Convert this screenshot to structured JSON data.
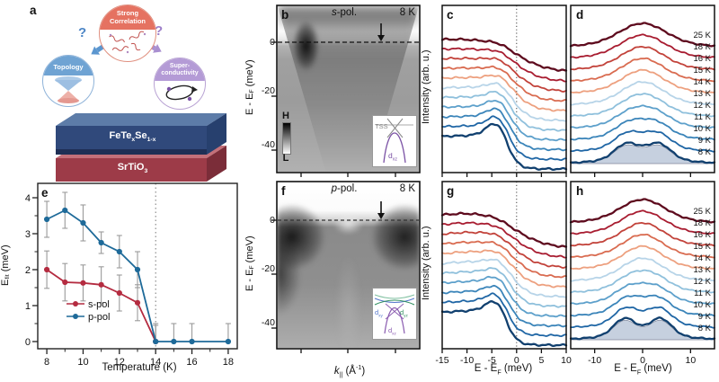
{
  "panel_a": {
    "label": "a",
    "correlation_line1": "Strong",
    "correlation_line2": "Correlation",
    "topology_label": "Topology",
    "superconductivity_line1": "Super-",
    "superconductivity_line2": "conductivity",
    "question_left": "?",
    "question_right": "?",
    "film": {
      "p1": "FeTe",
      "sub1": "x",
      "p2": "Se",
      "sub2": "1-x"
    },
    "substrate": {
      "p1": "SrTiO",
      "sub": "3"
    }
  },
  "axis": {
    "e_ef_1": "E - E",
    "e_ef_sub": "F",
    "e_ef_2": " (meV)",
    "intensity": "Intensity (arb. u.)"
  },
  "panel_b": {
    "label": "b",
    "pol_italic": "s",
    "pol_rest": "-pol.",
    "temperature": "8 K",
    "yticks": [
      "0",
      "-20",
      "-40"
    ],
    "colorbar_high": "H",
    "colorbar_low": "L",
    "inset": {
      "tss": "TSS",
      "d": "d",
      "dsub": "xz"
    }
  },
  "panel_f": {
    "label": "f",
    "pol_italic": "p",
    "pol_rest": "-pol.",
    "temperature": "8 K",
    "yticks": [
      "0",
      "-20",
      "-40"
    ],
    "xlabel": {
      "k": "k",
      "ksub": "||",
      "p2": " (Å",
      "sup": "-1",
      "p3": ")"
    },
    "inset": {
      "d1": "d",
      "d1sub": "xy",
      "d2": "d",
      "d2sub": "yz",
      "d3": "d",
      "d3sub": "xz"
    }
  },
  "panel_c": {
    "label": "c"
  },
  "panel_g": {
    "label": "g"
  },
  "panel_d": {
    "label": "d"
  },
  "panel_h": {
    "label": "h"
  },
  "panel_e": {
    "label": "e",
    "ylabel_main": "E",
    "ylabel_sub": "fit",
    "ylabel_rest": " (meV)",
    "xlabel": "Temperature (K)"
  },
  "chart_data": {
    "panel_e": {
      "type": "line",
      "xlabel": "Temperature (K)",
      "ylabel": "Efit (meV)",
      "xlim": [
        7.5,
        18.5
      ],
      "ylim": [
        0,
        4.6
      ],
      "xticks": [
        8,
        10,
        12,
        14,
        16,
        18
      ],
      "xticks_minor": [
        9,
        11,
        13,
        15,
        17
      ],
      "yticks": [
        0,
        1,
        2,
        3,
        4
      ],
      "yticks_minor": [
        0.5,
        1.5,
        2.5,
        3.5
      ],
      "dashed_line_x": 14,
      "series": [
        {
          "name": "s-pol",
          "color": "#b42b40",
          "x": [
            8,
            9,
            10,
            11,
            12,
            13,
            14
          ],
          "y": [
            2.0,
            1.65,
            1.63,
            1.58,
            1.35,
            1.08,
            0.0
          ],
          "yerr": [
            0.52,
            0.52,
            0.5,
            0.5,
            0.5,
            0.5,
            0.45
          ]
        },
        {
          "name": "p-pol",
          "color": "#1e6a99",
          "x": [
            8,
            9,
            10,
            11,
            12,
            13,
            14,
            15,
            16,
            18
          ],
          "y": [
            3.4,
            3.65,
            3.3,
            2.75,
            2.5,
            2.0,
            0.0,
            0.0,
            0.0,
            0.0
          ],
          "yerr": [
            0.5,
            0.5,
            0.5,
            0.3,
            0.45,
            0.5,
            0.5,
            0.5,
            0.5,
            0.5
          ]
        }
      ]
    },
    "panel_c": {
      "type": "line",
      "desc": "EDCs at kF, s-pol",
      "model": "edge",
      "xlim": [
        -15,
        10
      ],
      "xlabel": "E - EF (meV)",
      "xticks": [
        -15,
        -10,
        -5,
        0,
        5,
        10
      ],
      "xtick_labels": [],
      "dotted_line_x": 0,
      "curves": [
        {
          "label": "25 K",
          "color": "#5e0b1e",
          "mu": 0.3,
          "w": 3.0,
          "peak_pos": -3.0,
          "peak_amp": 0.1,
          "hump_amp": 0.03
        },
        {
          "label": "18 K",
          "color": "#a81c30",
          "mu": 0.2,
          "w": 2.6,
          "peak_pos": -3.0,
          "peak_amp": 0.13,
          "hump_amp": 0.03
        },
        {
          "label": "16 K",
          "color": "#c2423a",
          "mu": 0.1,
          "w": 2.3,
          "peak_pos": -3.1,
          "peak_amp": 0.16,
          "hump_amp": 0.03
        },
        {
          "label": "15 K",
          "color": "#d96b50",
          "mu": 0.0,
          "w": 2.1,
          "peak_pos": -3.1,
          "peak_amp": 0.18,
          "hump_amp": 0.03
        },
        {
          "label": "14 K",
          "color": "#eda07f",
          "mu": 0.0,
          "w": 1.9,
          "peak_pos": -3.2,
          "peak_amp": 0.21,
          "hump_amp": 0.03
        },
        {
          "label": "13 K",
          "color": "#b7d4e8",
          "mu": -0.4,
          "w": 1.7,
          "peak_pos": -3.2,
          "peak_amp": 0.27,
          "hump_amp": 0.03
        },
        {
          "label": "12 K",
          "color": "#8fc0dc",
          "mu": -0.6,
          "w": 1.6,
          "peak_pos": -3.3,
          "peak_amp": 0.31,
          "hump_amp": 0.03
        },
        {
          "label": "11 K",
          "color": "#5da0cb",
          "mu": -0.8,
          "w": 1.5,
          "peak_pos": -3.3,
          "peak_amp": 0.35,
          "hump_amp": 0.03
        },
        {
          "label": "10 K",
          "color": "#3a84b9",
          "mu": -1.0,
          "w": 1.4,
          "peak_pos": -3.4,
          "peak_amp": 0.39,
          "hump_amp": 0.03
        },
        {
          "label": "9 K",
          "color": "#1f66a5",
          "mu": -1.3,
          "w": 1.3,
          "peak_pos": -3.4,
          "peak_amp": 0.45,
          "hump_amp": 0.03
        },
        {
          "label": "8 K",
          "color": "#11406f",
          "mu": -1.6,
          "w": 1.2,
          "peak_pos": -3.5,
          "peak_amp": 0.55,
          "hump_amp": 0.03
        }
      ]
    },
    "panel_g": {
      "type": "line",
      "desc": "EDCs at kF, p-pol",
      "model": "edge",
      "xlim": [
        -15,
        10
      ],
      "xlabel": "E - EF (meV)",
      "xticks": [
        -15,
        -10,
        -5,
        0,
        5,
        10
      ],
      "xtick_labels": [
        "-15",
        "-10",
        "-5",
        "0",
        "5",
        "10"
      ],
      "dotted_line_x": 0,
      "curves": [
        {
          "label": "25 K",
          "color": "#5e0b1e",
          "mu": 0.3,
          "w": 3.0,
          "peak_pos": -3.5,
          "peak_amp": 0.08,
          "hump_amp": 0.1
        },
        {
          "label": "18 K",
          "color": "#a81c30",
          "mu": 0.2,
          "w": 2.6,
          "peak_pos": -3.5,
          "peak_amp": 0.1,
          "hump_amp": 0.1
        },
        {
          "label": "16 K",
          "color": "#c2423a",
          "mu": 0.1,
          "w": 2.3,
          "peak_pos": -3.5,
          "peak_amp": 0.12,
          "hump_amp": 0.1
        },
        {
          "label": "15 K",
          "color": "#d96b50",
          "mu": 0.0,
          "w": 2.1,
          "peak_pos": -3.5,
          "peak_amp": 0.14,
          "hump_amp": 0.09
        },
        {
          "label": "14 K",
          "color": "#eda07f",
          "mu": -0.1,
          "w": 1.9,
          "peak_pos": -3.5,
          "peak_amp": 0.17,
          "hump_amp": 0.09
        },
        {
          "label": "13 K",
          "color": "#b7d4e8",
          "mu": -0.5,
          "w": 1.7,
          "peak_pos": -3.5,
          "peak_amp": 0.22,
          "hump_amp": 0.08
        },
        {
          "label": "12 K",
          "color": "#8fc0dc",
          "mu": -0.8,
          "w": 1.6,
          "peak_pos": -3.5,
          "peak_amp": 0.26,
          "hump_amp": 0.07
        },
        {
          "label": "11 K",
          "color": "#5da0cb",
          "mu": -1.0,
          "w": 1.5,
          "peak_pos": -3.5,
          "peak_amp": 0.3,
          "hump_amp": 0.07
        },
        {
          "label": "10 K",
          "color": "#3a84b9",
          "mu": -1.3,
          "w": 1.4,
          "peak_pos": -3.5,
          "peak_amp": 0.34,
          "hump_amp": 0.06
        },
        {
          "label": "9 K",
          "color": "#1f66a5",
          "mu": -1.6,
          "w": 1.3,
          "peak_pos": -3.5,
          "peak_amp": 0.4,
          "hump_amp": 0.06
        },
        {
          "label": "8 K",
          "color": "#11406f",
          "mu": -1.9,
          "w": 1.2,
          "peak_pos": -3.5,
          "peak_amp": 0.5,
          "hump_amp": 0.06
        }
      ]
    },
    "panel_d": {
      "type": "line",
      "desc": "symmetrized EDCs, s-pol",
      "model": "sym",
      "xlim": [
        -15,
        15
      ],
      "xlabel": "E - EF (meV)",
      "xticks": [
        -10,
        0,
        10
      ],
      "xtick_labels": [],
      "curves": [
        {
          "label": "25 K",
          "color": "#5e0b1e",
          "split": 0.0,
          "sigma": 4.6
        },
        {
          "label": "18 K",
          "color": "#a81c30",
          "split": 0.0,
          "sigma": 4.4
        },
        {
          "label": "16 K",
          "color": "#c2423a",
          "split": 0.0,
          "sigma": 4.2
        },
        {
          "label": "15 K",
          "color": "#d96b50",
          "split": 0.0,
          "sigma": 4.1
        },
        {
          "label": "14 K",
          "color": "#eda07f",
          "split": 0.8,
          "sigma": 4.0
        },
        {
          "label": "13 K",
          "color": "#b7d4e8",
          "split": 1.6,
          "sigma": 3.6
        },
        {
          "label": "12 K",
          "color": "#8fc0dc",
          "split": 2.1,
          "sigma": 3.3
        },
        {
          "label": "11 K",
          "color": "#5da0cb",
          "split": 2.5,
          "sigma": 3.1
        },
        {
          "label": "10 K",
          "color": "#3a84b9",
          "split": 2.8,
          "sigma": 2.9
        },
        {
          "label": "9 K",
          "color": "#1f66a5",
          "split": 3.1,
          "sigma": 2.7
        },
        {
          "label": "8 K",
          "color": "#11406f",
          "split": 3.3,
          "sigma": 2.5,
          "fill": true
        }
      ]
    },
    "panel_h": {
      "type": "line",
      "desc": "symmetrized EDCs, p-pol",
      "model": "sym",
      "xlim": [
        -15,
        15
      ],
      "xlabel": "E - EF (meV)",
      "xticks": [
        -10,
        0,
        10
      ],
      "xtick_labels": [
        "-10",
        "0",
        "10"
      ],
      "curves": [
        {
          "label": "25 K",
          "color": "#5e0b1e",
          "split": 0.0,
          "sigma": 4.4
        },
        {
          "label": "18 K",
          "color": "#a81c30",
          "split": 0.0,
          "sigma": 4.2
        },
        {
          "label": "16 K",
          "color": "#c2423a",
          "split": 0.0,
          "sigma": 4.0
        },
        {
          "label": "15 K",
          "color": "#d96b50",
          "split": 0.0,
          "sigma": 3.9
        },
        {
          "label": "14 K",
          "color": "#eda07f",
          "split": 1.0,
          "sigma": 3.8
        },
        {
          "label": "13 K",
          "color": "#b7d4e8",
          "split": 1.8,
          "sigma": 3.4
        },
        {
          "label": "12 K",
          "color": "#8fc0dc",
          "split": 2.4,
          "sigma": 3.1
        },
        {
          "label": "11 K",
          "color": "#5da0cb",
          "split": 2.8,
          "sigma": 2.9
        },
        {
          "label": "10 K",
          "color": "#3a84b9",
          "split": 3.1,
          "sigma": 2.7
        },
        {
          "label": "9 K",
          "color": "#1f66a5",
          "split": 3.4,
          "sigma": 2.5
        },
        {
          "label": "8 K",
          "color": "#11406f",
          "split": 3.7,
          "sigma": 2.3,
          "fill": true
        }
      ]
    }
  }
}
